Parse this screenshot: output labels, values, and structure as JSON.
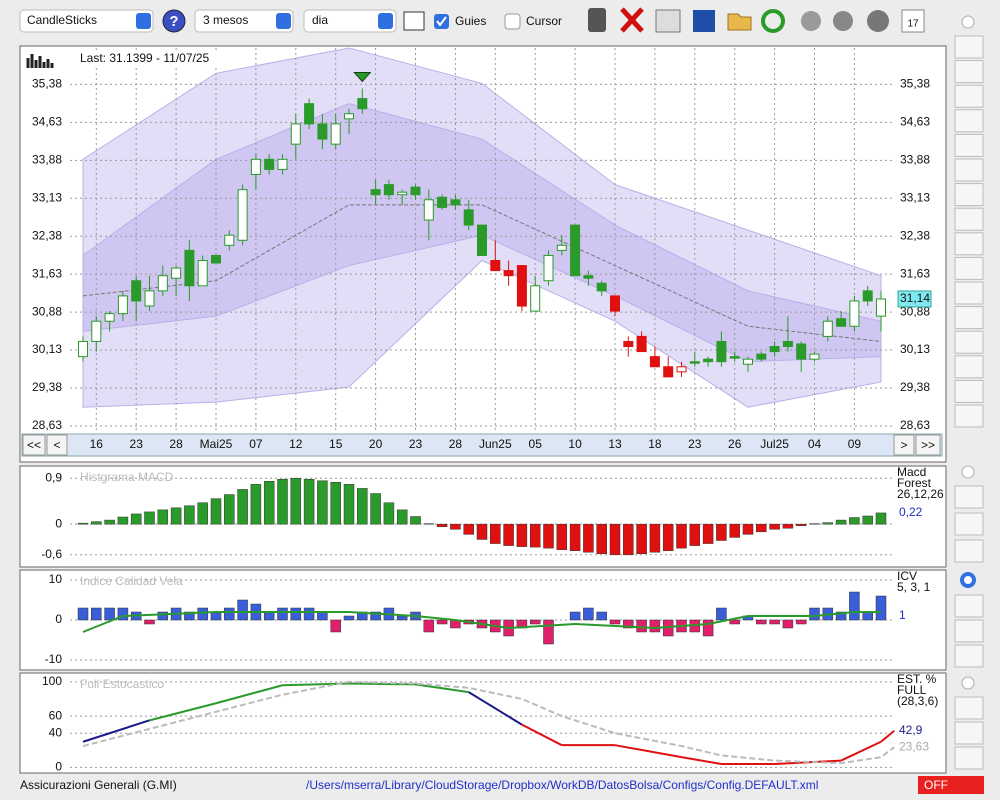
{
  "toolbar": {
    "chart_type": "CandleSticks",
    "period": "3 mesos",
    "interval": "dia",
    "guides": "Guies",
    "cursor": "Cursor"
  },
  "nav": {
    "first": "<<",
    "prev": "<",
    "next": ">",
    "last": ">>"
  },
  "chart_data": [
    {
      "type": "candlestick",
      "info": "Last: 31.1399 - 11/07/25",
      "last_label": "31,14",
      "categories": [
        null,
        "16",
        null,
        null,
        "23",
        null,
        null,
        "28",
        null,
        null,
        "Mai25",
        null,
        null,
        "07",
        null,
        null,
        "12",
        null,
        null,
        "15",
        null,
        null,
        "20",
        null,
        null,
        "23",
        null,
        null,
        "28",
        null,
        null,
        "Jun25",
        null,
        null,
        "05",
        null,
        null,
        "10",
        null,
        null,
        "13",
        null,
        null,
        "18",
        null,
        null,
        "23",
        null,
        null,
        "26",
        null,
        null,
        "Jul25",
        null,
        null,
        "04",
        null,
        null,
        "09",
        null,
        null
      ],
      "open": [
        30.0,
        30.3,
        30.7,
        30.85,
        31.5,
        31.0,
        31.3,
        31.55,
        32.1,
        31.4,
        32.0,
        32.2,
        32.3,
        33.6,
        33.9,
        33.7,
        34.2,
        35.0,
        34.6,
        34.2,
        34.7,
        35.1,
        33.3,
        33.4,
        33.2,
        33.35,
        32.7,
        33.15,
        33.1,
        32.9,
        32.6,
        31.9,
        31.7,
        31.8,
        30.9,
        31.5,
        32.1,
        32.6,
        31.6,
        31.45,
        31.2,
        30.3,
        30.4,
        30.0,
        29.8,
        29.7,
        29.9,
        29.95,
        30.3,
        30.0,
        29.85,
        30.05,
        30.2,
        30.3,
        30.25,
        29.95,
        30.4,
        30.75,
        30.6,
        31.3,
        30.8
      ],
      "high": [
        30.4,
        30.8,
        30.9,
        31.3,
        31.6,
        31.6,
        31.8,
        31.8,
        32.3,
        32.0,
        32.0,
        32.5,
        33.4,
        34.0,
        34.0,
        34.0,
        34.8,
        35.1,
        34.8,
        34.8,
        34.9,
        35.3,
        33.5,
        33.5,
        33.3,
        33.4,
        33.3,
        33.2,
        33.2,
        33.1,
        32.6,
        32.3,
        31.9,
        31.8,
        31.6,
        32.1,
        32.4,
        32.6,
        31.7,
        31.5,
        31.2,
        30.4,
        30.5,
        30.2,
        30.0,
        29.9,
        30.1,
        30.0,
        30.5,
        30.1,
        30.0,
        30.1,
        30.3,
        30.8,
        30.3,
        30.1,
        30.8,
        30.9,
        31.2,
        31.4,
        31.3
      ],
      "low": [
        29.9,
        30.1,
        30.5,
        30.7,
        30.7,
        30.9,
        31.2,
        31.2,
        31.1,
        31.4,
        31.85,
        32.1,
        32.2,
        33.3,
        33.6,
        33.6,
        33.9,
        34.5,
        34.1,
        34.1,
        34.4,
        34.8,
        33.0,
        33.1,
        33.0,
        33.1,
        32.3,
        32.9,
        32.9,
        32.5,
        32.0,
        31.7,
        31.4,
        30.9,
        30.9,
        31.4,
        32.0,
        31.6,
        31.4,
        31.2,
        30.8,
        30.0,
        30.1,
        29.8,
        29.6,
        29.6,
        29.8,
        29.8,
        29.8,
        29.9,
        29.7,
        29.9,
        30.0,
        30.1,
        29.7,
        29.9,
        30.3,
        30.6,
        30.5,
        31.0,
        30.5
      ],
      "close": [
        30.3,
        30.7,
        30.85,
        31.2,
        31.1,
        31.3,
        31.6,
        31.75,
        31.4,
        31.9,
        31.85,
        32.4,
        33.3,
        33.9,
        33.7,
        33.9,
        34.6,
        34.6,
        34.3,
        34.6,
        34.8,
        34.9,
        33.2,
        33.2,
        33.25,
        33.2,
        33.1,
        32.95,
        33.0,
        32.6,
        32.0,
        31.7,
        31.6,
        31.0,
        31.4,
        32.0,
        32.2,
        31.6,
        31.55,
        31.3,
        30.9,
        30.2,
        30.1,
        29.8,
        29.6,
        29.8,
        29.9,
        29.9,
        29.9,
        30.0,
        29.95,
        29.95,
        30.1,
        30.2,
        29.95,
        30.05,
        30.7,
        30.6,
        31.1,
        31.1,
        31.14
      ],
      "colors": [
        "#2a9a2a",
        "#2a9a2a",
        "#2a9a2a",
        "#2a9a2a",
        "#2a9a2a",
        "#2a9a2a",
        "#2a9a2a",
        "#2a9a2a",
        "#2a9a2a",
        "#2a9a2a",
        "#2a9a2a",
        "#2a9a2a",
        "#2a9a2a",
        "#2a9a2a",
        "#2a9a2a",
        "#2a9a2a",
        "#2a9a2a",
        "#2a9a2a",
        "#2a9a2a",
        "#2a9a2a",
        "#2a9a2a",
        "#2a9a2a",
        "#2a9a2a",
        "#2a9a2a",
        "#2a9a2a",
        "#2a9a2a",
        "#2a9a2a",
        "#2a9a2a",
        "#2a9a2a",
        "#2a9a2a",
        "#2a9a2a",
        "#e01010",
        "#e01010",
        "#e01010",
        "#2a9a2a",
        "#2a9a2a",
        "#2a9a2a",
        "#2a9a2a",
        "#2a9a2a",
        "#2a9a2a",
        "#e01010",
        "#e01010",
        "#e01010",
        "#e01010",
        "#e01010",
        "#e01010",
        "#2a9a2a",
        "#2a9a2a",
        "#2a9a2a",
        "#2a9a2a",
        "#2a9a2a",
        "#2a9a2a",
        "#2a9a2a",
        "#2a9a2a",
        "#2a9a2a",
        "#2a9a2a",
        "#2a9a2a",
        "#2a9a2a",
        "#2a9a2a",
        "#2a9a2a",
        "#2a9a2a"
      ],
      "marker_index": 21,
      "marker_color": "#2a9a2a",
      "band_x": [
        0,
        10,
        20,
        30,
        40,
        50,
        60
      ],
      "bands": [
        {
          "color": "#e3def8",
          "upper": [
            33.9,
            35.6,
            36.1,
            35.4,
            33.4,
            32.5,
            31.6
          ],
          "lower": [
            29.0,
            29.1,
            29.4,
            31.9,
            30.7,
            29.0,
            29.5
          ]
        },
        {
          "color": "#cfc7f1",
          "upper": [
            32.0,
            33.9,
            35.0,
            34.3,
            32.6,
            31.3,
            30.7
          ],
          "lower": [
            30.5,
            30.8,
            31.8,
            32.4,
            31.2,
            29.9,
            30.0
          ]
        }
      ],
      "ma": {
        "color": "#777777",
        "values": [
          31.2,
          31.5,
          33.0,
          33.0,
          31.8,
          30.6,
          30.3
        ]
      },
      "ylim": [
        28.55,
        36.1
      ],
      "yticks": [
        {
          "value": 35.38,
          "label": "35,38"
        },
        {
          "value": 34.63,
          "label": "34,63"
        },
        {
          "value": 33.88,
          "label": "33,88"
        },
        {
          "value": 33.13,
          "label": "33,13"
        },
        {
          "value": 32.38,
          "label": "32,38"
        },
        {
          "value": 31.63,
          "label": "31,63"
        },
        {
          "value": 30.88,
          "label": "30,88"
        },
        {
          "value": 30.13,
          "label": "30,13"
        },
        {
          "value": 29.38,
          "label": "29,38"
        },
        {
          "value": 28.63,
          "label": "28,63"
        }
      ],
      "grid": true
    },
    {
      "type": "histogram",
      "title": "Histgrama MACD",
      "legend": [
        "Macd",
        "Forest",
        "26,12,26"
      ],
      "current": 0.22,
      "current_label": "0,22",
      "values": [
        0.02,
        0.05,
        0.08,
        0.14,
        0.2,
        0.24,
        0.28,
        0.32,
        0.36,
        0.42,
        0.5,
        0.58,
        0.68,
        0.78,
        0.84,
        0.88,
        0.9,
        0.88,
        0.85,
        0.82,
        0.78,
        0.7,
        0.6,
        0.42,
        0.28,
        0.15,
        0.01,
        -0.05,
        -0.1,
        -0.2,
        -0.3,
        -0.38,
        -0.42,
        -0.44,
        -0.45,
        -0.47,
        -0.5,
        -0.52,
        -0.55,
        -0.58,
        -0.6,
        -0.6,
        -0.58,
        -0.55,
        -0.52,
        -0.47,
        -0.42,
        -0.38,
        -0.32,
        -0.26,
        -0.2,
        -0.15,
        -0.1,
        -0.08,
        -0.03,
        0.01,
        0.03,
        0.08,
        0.13,
        0.16,
        0.22
      ],
      "pos_color": "#2a9a2a",
      "neg_color": "#e01010",
      "ylim": [
        -0.8,
        1.1
      ],
      "yticks": [
        {
          "value": 0.9,
          "label": "0,9"
        },
        0,
        {
          "value": -0.6,
          "label": "-0,6"
        }
      ]
    },
    {
      "type": "histogram",
      "title": "Indice Calidad Vela",
      "legend": [
        "ICV",
        "5, 3, 1"
      ],
      "current": 1,
      "values": [
        3,
        3,
        3,
        3,
        2,
        -1,
        2,
        3,
        2,
        3,
        2,
        3,
        5,
        4,
        2,
        3,
        3,
        3,
        2,
        -3,
        1,
        2,
        2,
        3,
        1,
        2,
        -3,
        -1,
        -2,
        -1,
        -2,
        -3,
        -4,
        -2,
        -1,
        -6,
        0,
        2,
        3,
        2,
        -1,
        -2,
        -3,
        -3,
        -4,
        -3,
        -3,
        -4,
        3,
        -1,
        1,
        -1,
        -1,
        -2,
        -1,
        3,
        3,
        2,
        7,
        2,
        6
      ],
      "pos_color": "#3a5ed8",
      "neg_color": "#e0206a",
      "line": {
        "color": "#2a9a2a",
        "x": [
          0,
          3,
          10,
          15,
          20,
          25,
          28,
          32,
          37,
          43,
          47,
          50,
          55,
          58,
          60
        ],
        "values": [
          -3,
          1,
          2,
          2,
          2,
          1,
          0,
          -2,
          -1,
          -2,
          -1,
          1,
          1,
          2,
          2
        ]
      },
      "ylim": [
        -12,
        12
      ],
      "yticks": [
        10,
        0,
        {
          "value": -10,
          "label": "-10"
        }
      ]
    },
    {
      "type": "line",
      "title": "Full Estocastico",
      "legend": [
        "EST. %",
        "FULL",
        "(28,3,6)"
      ],
      "series": [
        {
          "color": "#2a9a2a",
          "x": [
            0,
            5,
            10,
            15,
            20,
            25,
            29,
            33,
            36,
            40,
            45,
            48,
            52,
            57,
            60,
            61
          ],
          "values": [
            30,
            55,
            75,
            96,
            98,
            97,
            88,
            50,
            26,
            26,
            12,
            4,
            4,
            8,
            30,
            42.9
          ],
          "value_label": "42,9",
          "label_color": "#1a1a8c",
          "segment_colors": [
            "#1a1a8c",
            "#2a9a2a",
            "#2a9a2a",
            "#2a9a2a",
            "#2a9a2a",
            "#2a9a2a",
            "#1a1a8c",
            "#e01010",
            "#e01010",
            "#e01010",
            "#e01010",
            "#e01010",
            "#e01010",
            "#e01010",
            "#e01010"
          ]
        },
        {
          "color": "#bbbbbb",
          "dashed": true,
          "x": [
            0,
            5,
            10,
            15,
            20,
            25,
            29,
            33,
            36,
            40,
            45,
            48,
            52,
            57,
            60,
            61
          ],
          "values": [
            25,
            45,
            65,
            85,
            100,
            98,
            93,
            80,
            60,
            40,
            25,
            14,
            8,
            5,
            12,
            23.63
          ],
          "value_label": "23,63",
          "label_color": "#aaaaaa"
        }
      ],
      "ylim": [
        -3,
        108
      ],
      "yticks": [
        100,
        60,
        40,
        0
      ]
    }
  ],
  "status": {
    "symbol": "Assicurazioni Generali (G.MI)",
    "path": "/Users/mserra/Library/CloudStorage/Dropbox/WorkDB/DatosBolsa/Configs/Config.DEFAULT.xml",
    "state": "OFF"
  }
}
